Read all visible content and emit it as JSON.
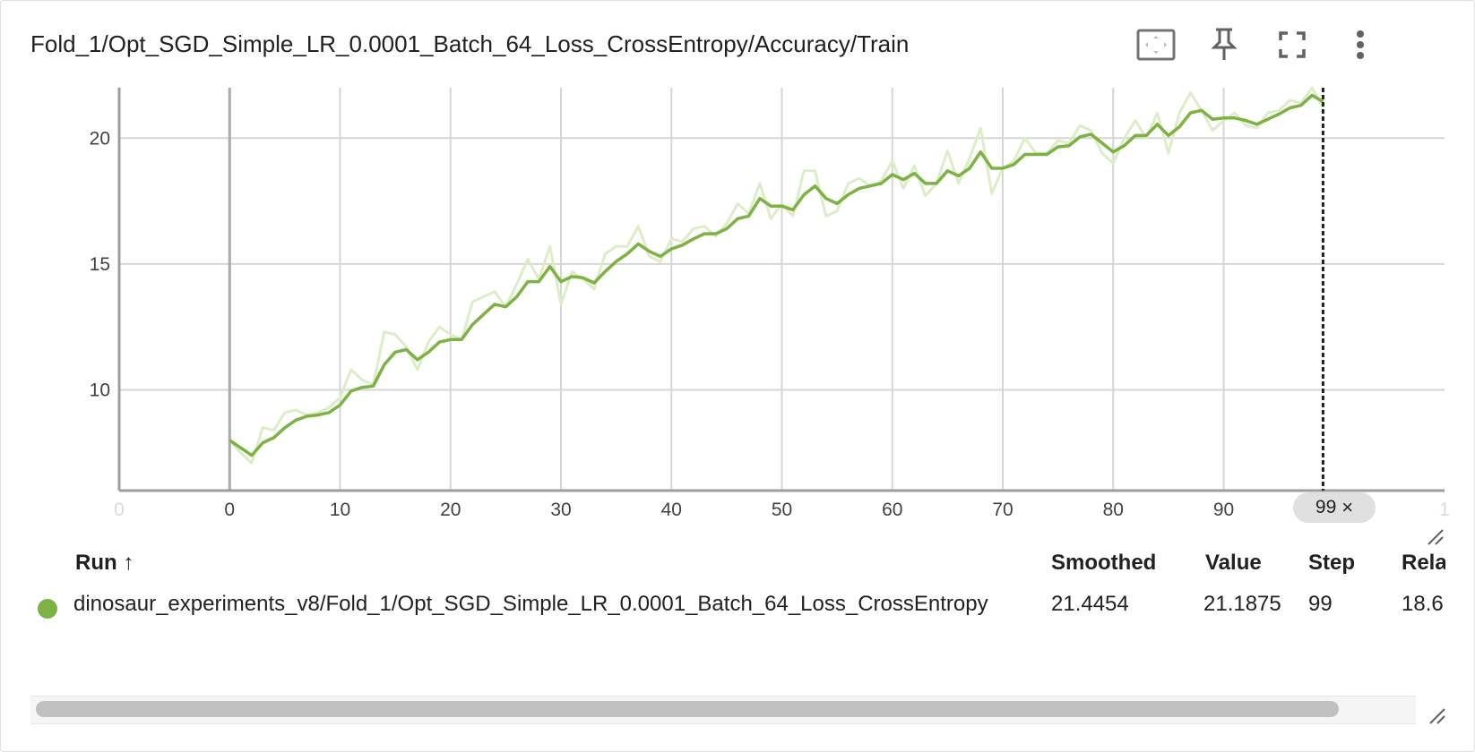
{
  "header": {
    "title": "Fold_1/Opt_SGD_Simple_LR_0.0001_Batch_64_Loss_CrossEntropy/Accuracy/Train",
    "icons": [
      "fit-domain-icon",
      "pin-icon",
      "fullscreen-icon",
      "more-vert-icon"
    ]
  },
  "chart_data": {
    "type": "line",
    "title": "Fold_1/Opt_SGD_Simple_LR_0.0001_Batch_64_Loss_CrossEntropy/Accuracy/Train",
    "xlabel": "",
    "ylabel": "",
    "xlim": [
      -10,
      110
    ],
    "ylim": [
      6,
      22
    ],
    "x_ticks": [
      "0",
      "0",
      "10",
      "20",
      "30",
      "40",
      "50",
      "60",
      "70",
      "80",
      "90",
      "1"
    ],
    "x_tick_values": [
      -10,
      0,
      10,
      20,
      30,
      40,
      50,
      60,
      70,
      80,
      90,
      110
    ],
    "y_ticks": [
      "10",
      "15",
      "20"
    ],
    "y_tick_values": [
      10,
      15,
      20
    ],
    "grid": true,
    "hover_step": 99,
    "hover_label": "99",
    "colors": {
      "smoothed": "#7cb342",
      "raw": "#dcedc8",
      "hover_line": "#212121"
    },
    "series": [
      {
        "name": "raw",
        "x": [
          0,
          1,
          2,
          3,
          4,
          5,
          6,
          7,
          8,
          9,
          10,
          11,
          12,
          13,
          14,
          15,
          16,
          17,
          18,
          19,
          20,
          21,
          22,
          23,
          24,
          25,
          26,
          27,
          28,
          29,
          30,
          31,
          32,
          33,
          34,
          35,
          36,
          37,
          38,
          39,
          40,
          41,
          42,
          43,
          44,
          45,
          46,
          47,
          48,
          49,
          50,
          51,
          52,
          53,
          54,
          55,
          56,
          57,
          58,
          59,
          60,
          61,
          62,
          63,
          64,
          65,
          66,
          67,
          68,
          69,
          70,
          71,
          72,
          73,
          74,
          75,
          76,
          77,
          78,
          79,
          80,
          81,
          82,
          83,
          84,
          85,
          86,
          87,
          88,
          89,
          90,
          91,
          92,
          93,
          94,
          95,
          96,
          97,
          98,
          99
        ],
        "values": [
          8.0,
          7.5,
          7.1,
          8.5,
          8.4,
          9.1,
          9.2,
          9.0,
          9.1,
          9.3,
          9.7,
          10.8,
          10.4,
          10.2,
          12.3,
          12.2,
          11.7,
          10.8,
          11.9,
          12.5,
          12.2,
          12.0,
          13.5,
          13.7,
          13.9,
          13.3,
          14.2,
          15.2,
          14.4,
          15.7,
          13.4,
          14.7,
          14.4,
          14.0,
          15.4,
          15.7,
          15.7,
          16.5,
          15.3,
          15.1,
          16.0,
          15.9,
          16.4,
          16.5,
          16.1,
          16.6,
          17.4,
          17.0,
          18.2,
          16.8,
          17.4,
          16.9,
          18.7,
          18.7,
          16.9,
          17.1,
          18.2,
          18.4,
          18.1,
          18.3,
          19.1,
          18.0,
          18.9,
          17.7,
          18.2,
          19.5,
          18.2,
          19.2,
          20.4,
          17.8,
          18.8,
          19.1,
          20.0,
          19.4,
          19.4,
          19.9,
          19.8,
          20.5,
          20.3,
          19.4,
          19.0,
          20.0,
          20.7,
          20.0,
          21.0,
          19.4,
          21.0,
          21.8,
          21.1,
          20.3,
          20.7,
          21.0,
          20.5,
          20.4,
          21.0,
          21.1,
          21.5,
          21.4,
          22.0,
          21.2
        ]
      },
      {
        "name": "smoothed",
        "x": [
          0,
          1,
          2,
          3,
          4,
          5,
          6,
          7,
          8,
          9,
          10,
          11,
          12,
          13,
          14,
          15,
          16,
          17,
          18,
          19,
          20,
          21,
          22,
          23,
          24,
          25,
          26,
          27,
          28,
          29,
          30,
          31,
          32,
          33,
          34,
          35,
          36,
          37,
          38,
          39,
          40,
          41,
          42,
          43,
          44,
          45,
          46,
          47,
          48,
          49,
          50,
          51,
          52,
          53,
          54,
          55,
          56,
          57,
          58,
          59,
          60,
          61,
          62,
          63,
          64,
          65,
          66,
          67,
          68,
          69,
          70,
          71,
          72,
          73,
          74,
          75,
          76,
          77,
          78,
          79,
          80,
          81,
          82,
          83,
          84,
          85,
          86,
          87,
          88,
          89,
          90,
          91,
          92,
          93,
          94,
          95,
          96,
          97,
          98,
          99
        ],
        "values": [
          8.0,
          7.7,
          7.4,
          7.9,
          8.1,
          8.5,
          8.8,
          8.95,
          9.0,
          9.1,
          9.4,
          9.95,
          10.1,
          10.15,
          11.0,
          11.5,
          11.6,
          11.2,
          11.5,
          11.9,
          12.0,
          12.0,
          12.6,
          13.0,
          13.4,
          13.3,
          13.7,
          14.3,
          14.3,
          14.9,
          14.3,
          14.5,
          14.45,
          14.25,
          14.7,
          15.1,
          15.4,
          15.8,
          15.5,
          15.3,
          15.6,
          15.75,
          16.0,
          16.2,
          16.2,
          16.4,
          16.8,
          16.9,
          17.6,
          17.3,
          17.3,
          17.15,
          17.75,
          18.1,
          17.6,
          17.4,
          17.75,
          18.0,
          18.1,
          18.2,
          18.55,
          18.35,
          18.6,
          18.2,
          18.2,
          18.7,
          18.5,
          18.8,
          19.45,
          18.8,
          18.8,
          18.95,
          19.35,
          19.35,
          19.35,
          19.65,
          19.7,
          20.05,
          20.15,
          19.8,
          19.45,
          19.7,
          20.1,
          20.1,
          20.55,
          20.1,
          20.45,
          21.0,
          21.1,
          20.75,
          20.8,
          20.8,
          20.7,
          20.55,
          20.75,
          20.95,
          21.2,
          21.3,
          21.7,
          21.45
        ]
      }
    ]
  },
  "table": {
    "headers": {
      "run": "Run ↑",
      "smoothed": "Smoothed",
      "value": "Value",
      "step": "Step",
      "relative": "Rela"
    },
    "row": {
      "run": "dinosaur_experiments_v8/Fold_1/Opt_SGD_Simple_LR_0.0001_Batch_64_Loss_CrossEntropy",
      "smoothed": "21.4454",
      "value": "21.1875",
      "step": "99",
      "relative": "18.6",
      "color": "#7cb342"
    }
  }
}
